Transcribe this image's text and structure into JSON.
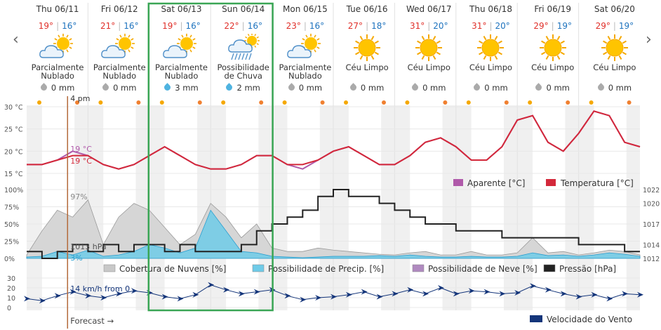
{
  "days": [
    {
      "name": "Thu 06/11",
      "max": "19°",
      "min": "16°",
      "cond_l1": "Parcialmente",
      "cond_l2": "Nublado",
      "precip": "0 mm",
      "icon": "partly-cloudy-icon",
      "rain": false
    },
    {
      "name": "Fri 06/12",
      "max": "21°",
      "min": "16°",
      "cond_l1": "Parcialmente",
      "cond_l2": "Nublado",
      "precip": "0 mm",
      "icon": "partly-cloudy-icon",
      "rain": false
    },
    {
      "name": "Sat 06/13",
      "max": "19°",
      "min": "16°",
      "cond_l1": "Parcialmente",
      "cond_l2": "Nublado",
      "precip": "3 mm",
      "icon": "partly-cloudy-icon",
      "rain": true
    },
    {
      "name": "Sun 06/14",
      "max": "22°",
      "min": "16°",
      "cond_l1": "Possibilidade",
      "cond_l2": "de Chuva",
      "precip": "2 mm",
      "icon": "rain-icon",
      "rain": true
    },
    {
      "name": "Mon 06/15",
      "max": "23°",
      "min": "16°",
      "cond_l1": "Parcialmente",
      "cond_l2": "Nublado",
      "precip": "0 mm",
      "icon": "partly-cloudy-icon",
      "rain": false
    },
    {
      "name": "Tue 06/16",
      "max": "27°",
      "min": "18°",
      "cond_l1": "Céu Limpo",
      "cond_l2": "",
      "precip": "0 mm",
      "icon": "sun-icon",
      "rain": false
    },
    {
      "name": "Wed 06/17",
      "max": "31°",
      "min": "20°",
      "cond_l1": "Céu Limpo",
      "cond_l2": "",
      "precip": "0 mm",
      "icon": "sun-icon",
      "rain": false
    },
    {
      "name": "Thu 06/18",
      "max": "31°",
      "min": "20°",
      "cond_l1": "Céu Limpo",
      "cond_l2": "",
      "precip": "0 mm",
      "icon": "sun-icon",
      "rain": false
    },
    {
      "name": "Fri 06/19",
      "max": "29°",
      "min": "19°",
      "cond_l1": "Céu Limpo",
      "cond_l2": "",
      "precip": "0 mm",
      "icon": "sun-icon",
      "rain": false
    },
    {
      "name": "Sat 06/20",
      "max": "29°",
      "min": "19°",
      "cond_l1": "Céu Limpo",
      "cond_l2": "",
      "precip": "0 mm",
      "icon": "sun-icon",
      "rain": false
    }
  ],
  "nav": {
    "prev": "‹",
    "next": "›"
  },
  "cursor": {
    "time_label": "4 pm",
    "temp_apparent": "19 °C",
    "temp": "19 °C",
    "cloud": "97%",
    "pressure": "1013 hPa",
    "precip_chance": "3%",
    "wind": "14 km/h from 0",
    "forecast": "Forecast →"
  },
  "temp_chart": {
    "type": "line",
    "y_ticks": [
      "30 °C",
      "25 °C",
      "20 °C",
      "15 °C"
    ],
    "legend": [
      {
        "label": "Aparente [°C]",
        "color": "#b05aaa"
      },
      {
        "label": "Temperatura [°C]",
        "color": "#d3283a"
      }
    ],
    "ylim": [
      15,
      30
    ],
    "x_hours": [
      0,
      6,
      12,
      18,
      24,
      30,
      36,
      42,
      48,
      54,
      60,
      66,
      72,
      78,
      84,
      90,
      96,
      102,
      108,
      114,
      120,
      126,
      132,
      138,
      144,
      150,
      156,
      162,
      168,
      174,
      180,
      186,
      192,
      198,
      204,
      210,
      216,
      222,
      228,
      234,
      240
    ],
    "temperatura": [
      17,
      17,
      18,
      19,
      19,
      17,
      16,
      17,
      19,
      21,
      19,
      17,
      16,
      16,
      17,
      19,
      19,
      17,
      17,
      18,
      20,
      21,
      19,
      17,
      17,
      19,
      22,
      23,
      21,
      18,
      18,
      21,
      27,
      28,
      22,
      20,
      24,
      29,
      28,
      22,
      21
    ],
    "aparente": [
      17,
      17,
      18,
      20,
      19,
      17,
      16,
      17,
      19,
      21,
      19,
      17,
      16,
      16,
      17,
      19,
      19,
      17,
      16,
      18,
      20,
      21,
      19,
      17,
      17,
      19,
      22,
      23,
      21,
      18,
      18,
      21,
      27,
      28,
      22,
      20,
      24,
      29,
      28,
      22,
      21
    ]
  },
  "mid_chart": {
    "type": "area",
    "y_left_ticks": [
      "100%",
      "75%",
      "50%",
      "25%",
      "0%"
    ],
    "y_right_ticks": [
      "1022",
      "1020",
      "1017",
      "1014",
      "1012"
    ],
    "legend": [
      {
        "label": "Cobertura de Nuvens [%]",
        "color": "#c8c8c8"
      },
      {
        "label": "Possibilidade de Precip. [%]",
        "color": "#6fcbe8"
      },
      {
        "label": "Possibilidade de Neve [%]",
        "color": "#b08ac0"
      },
      {
        "label": "Pressão [hPa]",
        "color": "#222222"
      }
    ],
    "cloud": [
      5,
      40,
      70,
      60,
      85,
      20,
      60,
      80,
      70,
      45,
      20,
      35,
      80,
      60,
      30,
      50,
      15,
      10,
      10,
      15,
      12,
      10,
      8,
      6,
      5,
      8,
      10,
      5,
      5,
      10,
      5,
      5,
      8,
      30,
      8,
      10,
      5,
      8,
      12,
      10,
      5
    ],
    "precip": [
      2,
      3,
      10,
      5,
      12,
      3,
      5,
      10,
      20,
      15,
      8,
      15,
      70,
      40,
      10,
      8,
      3,
      2,
      1,
      2,
      3,
      3,
      3,
      4,
      3,
      5,
      3,
      2,
      2,
      3,
      2,
      2,
      3,
      8,
      4,
      5,
      3,
      5,
      8,
      6,
      3
    ],
    "pressure": [
      1013,
      1012,
      1013,
      1014,
      1013,
      1014,
      1013,
      1014,
      1014,
      1013,
      1014,
      1013,
      1013,
      1013,
      1014,
      1016,
      1017,
      1018,
      1019,
      1021,
      1022,
      1021,
      1021,
      1020,
      1019,
      1018,
      1017,
      1017,
      1016,
      1016,
      1016,
      1015,
      1015,
      1015,
      1015,
      1015,
      1014,
      1014,
      1014,
      1013,
      1013
    ],
    "ylim": [
      0,
      100
    ],
    "y2lim": [
      1012,
      1022
    ]
  },
  "wind_chart": {
    "type": "line",
    "y_ticks": [
      "30",
      "20",
      "10",
      "0"
    ],
    "legend": [
      {
        "label": "Velocidade do Vento",
        "color": "#14357a"
      }
    ],
    "ylim": [
      0,
      30
    ],
    "speed": [
      9,
      7,
      12,
      16,
      12,
      10,
      14,
      17,
      15,
      11,
      9,
      13,
      23,
      18,
      14,
      16,
      18,
      12,
      8,
      10,
      11,
      13,
      16,
      11,
      14,
      18,
      14,
      20,
      14,
      17,
      16,
      14,
      15,
      22,
      18,
      14,
      11,
      13,
      9,
      14,
      13
    ]
  },
  "colors": {
    "selection": "#3aa655",
    "cursor": "#b46a3a",
    "shade": "#f0f0f0"
  }
}
